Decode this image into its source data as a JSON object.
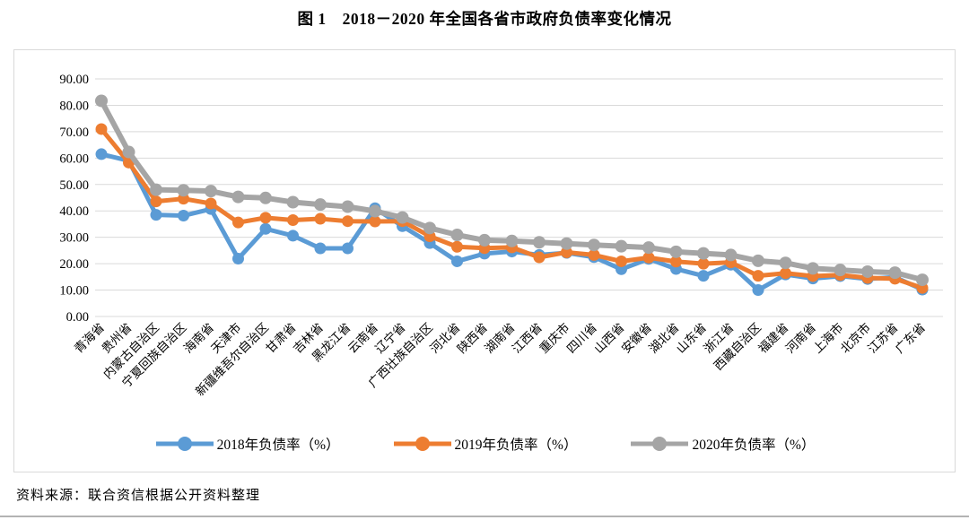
{
  "title": "图 1　2018－2020 年全国各省市政府负债率变化情况",
  "source_note": "资料来源：联合资信根据公开资料整理",
  "colors": {
    "series_2018": "#5B9BD5",
    "series_2019": "#ED7D31",
    "series_2020": "#A5A5A5",
    "gridline": "#D9D9D9",
    "frame_border": "#D9D9D9",
    "text": "#000000"
  },
  "chart_data": {
    "type": "line",
    "title": "图 1　2018－2020 年全国各省市政府负债率变化情况",
    "xlabel": "",
    "ylabel": "",
    "ylim": [
      0,
      90
    ],
    "ytick_step": 10,
    "ytick_labels": [
      "90.00",
      "80.00",
      "70.00",
      "60.00",
      "50.00",
      "40.00",
      "30.00",
      "20.00",
      "10.00",
      "0.00"
    ],
    "grid": true,
    "legend_position": "bottom",
    "categories": [
      "青海省",
      "贵州省",
      "内蒙古自治区",
      "宁夏回族自治区",
      "海南省",
      "天津市",
      "新疆维吾尔自治区",
      "甘肃省",
      "吉林省",
      "黑龙江省",
      "云南省",
      "辽宁省",
      "广西壮族自治区",
      "河北省",
      "陕西省",
      "湖南省",
      "江西省",
      "重庆市",
      "四川省",
      "山西省",
      "安徽省",
      "湖北省",
      "山东省",
      "浙江省",
      "西藏自治区",
      "福建省",
      "河南省",
      "上海市",
      "北京市",
      "江苏省",
      "广东省"
    ],
    "series": [
      {
        "name": "2018年负债率（%）",
        "color": "#5B9BD5",
        "values": [
          61.5,
          59.0,
          38.5,
          38.2,
          40.7,
          21.9,
          33.2,
          30.6,
          25.8,
          25.8,
          41.0,
          34.2,
          27.8,
          20.9,
          23.8,
          24.6,
          23.3,
          24.1,
          22.5,
          17.9,
          21.8,
          18.0,
          15.4,
          19.6,
          10.0,
          15.9,
          14.4,
          15.3,
          14.2,
          14.9,
          10.2
        ]
      },
      {
        "name": "2019年负债率（%）",
        "color": "#ED7D31",
        "values": [
          71.0,
          58.3,
          43.6,
          44.6,
          42.8,
          35.6,
          37.4,
          36.5,
          37.0,
          36.1,
          36.0,
          36.1,
          30.4,
          26.4,
          25.9,
          26.2,
          22.4,
          24.3,
          23.3,
          20.9,
          22.3,
          20.8,
          20.0,
          20.5,
          15.4,
          16.4,
          15.3,
          15.7,
          14.6,
          14.3,
          10.8
        ]
      },
      {
        "name": "2020年负债率（%）",
        "color": "#A5A5A5",
        "values": [
          81.7,
          62.3,
          48.0,
          47.8,
          47.5,
          45.3,
          44.9,
          43.3,
          42.4,
          41.6,
          39.9,
          37.5,
          33.5,
          30.9,
          28.9,
          28.6,
          28.1,
          27.6,
          27.1,
          26.6,
          26.1,
          24.5,
          23.9,
          23.3,
          21.1,
          20.3,
          18.2,
          17.6,
          17.0,
          16.6,
          13.9
        ]
      }
    ]
  }
}
